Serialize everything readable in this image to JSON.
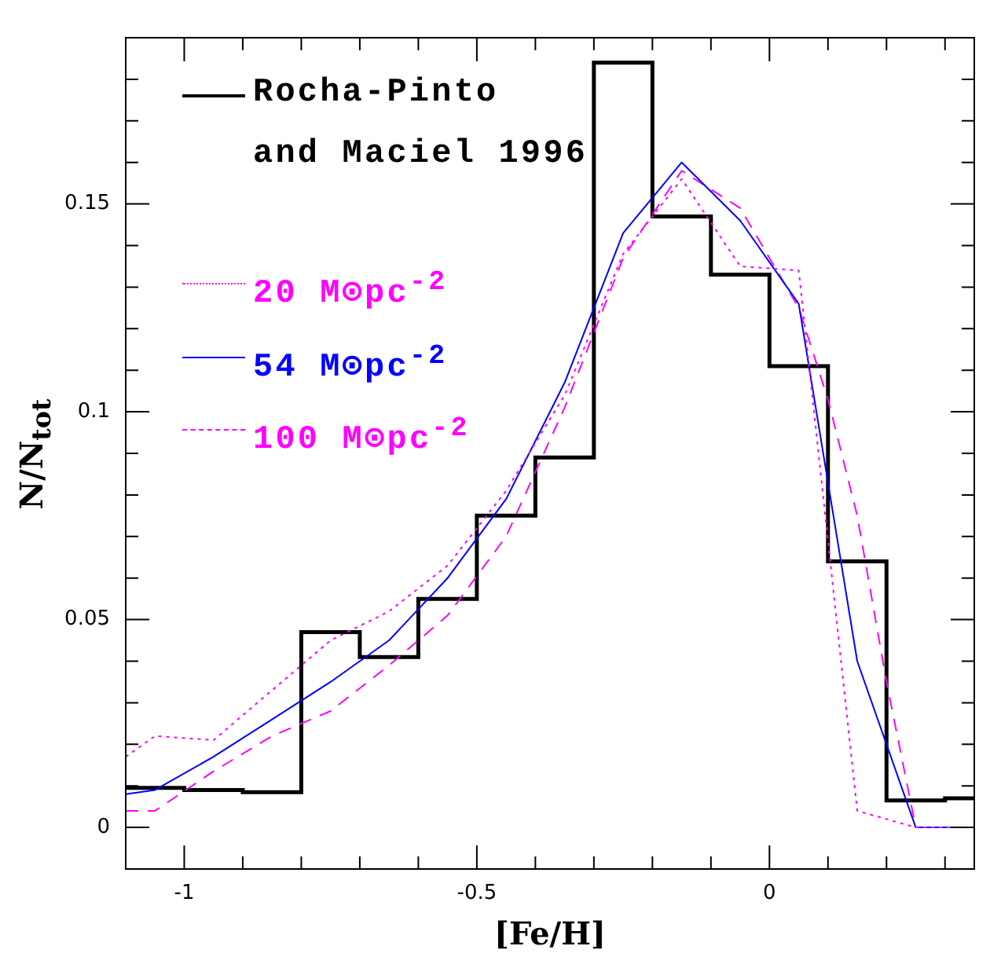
{
  "chart_data": {
    "type": "histogram",
    "xlabel": "[Fe/H]",
    "ylabel": "N/N$_{tot}$",
    "bins": [
      -1.1,
      -1.0,
      -0.9,
      -0.8,
      -0.7,
      -0.6,
      -0.5,
      -0.4,
      -0.3,
      -0.2,
      -0.1,
      0,
      0.1,
      0.2,
      0.3,
      0.35
    ],
    "series": [
      {
        "name": "Rocha-Pinto and Maciel 1996",
        "type": "histogram",
        "color": "#000000",
        "values": [
          0.0095,
          0.009,
          0.0085,
          0.047,
          0.041,
          0.055,
          0.075,
          0.089,
          0.184,
          0.147,
          0.133,
          0.111,
          0.064,
          0.0065,
          0.007
        ]
      },
      {
        "name": "20 M⊙pc$^{-2}$",
        "type": "line",
        "line_style": "dotted",
        "color": "#ff00ff",
        "x": [
          -1.1,
          -1.05,
          -0.95,
          -0.85,
          -0.75,
          -0.65,
          -0.55,
          -0.45,
          -0.35,
          -0.25,
          -0.15,
          -0.05,
          0.05,
          0.15,
          0.25,
          0.35
        ],
        "values": [
          0.017,
          0.022,
          0.021,
          0.033,
          0.045,
          0.052,
          0.063,
          0.081,
          0.104,
          0.138,
          0.156,
          0.135,
          0.134,
          0.004,
          0,
          0
        ]
      },
      {
        "name": "54 M⊙pc$^{-2}$",
        "type": "line",
        "line_style": "solid",
        "color": "#0000ff",
        "x": [
          -1.1,
          -1.05,
          -0.95,
          -0.85,
          -0.75,
          -0.65,
          -0.55,
          -0.45,
          -0.35,
          -0.25,
          -0.15,
          -0.05,
          0.05,
          0.15,
          0.25,
          0.35
        ],
        "values": [
          0.008,
          0.009,
          0.017,
          0.026,
          0.035,
          0.045,
          0.06,
          0.079,
          0.107,
          0.143,
          0.16,
          0.146,
          0.126,
          0.04,
          0,
          0
        ]
      },
      {
        "name": "100 M⊙pc$^{-2}$",
        "type": "line",
        "line_style": "dashed",
        "color": "#ff00ff",
        "x": [
          -1.1,
          -1.05,
          -0.95,
          -0.85,
          -0.75,
          -0.65,
          -0.55,
          -0.45,
          -0.35,
          -0.25,
          -0.15,
          -0.05,
          0.05,
          0.1,
          0.15,
          0.2,
          0.25,
          0.35
        ],
        "values": [
          0.004,
          0.004,
          0.0135,
          0.022,
          0.028,
          0.039,
          0.051,
          0.07,
          0.101,
          0.137,
          0.158,
          0.149,
          0.125,
          0.103,
          0.075,
          0.035,
          0,
          0
        ]
      }
    ],
    "xlim": [
      -1.1,
      0.35
    ],
    "xticks": [
      {
        "value": -1.1,
        "label": null
      },
      -1,
      {
        "value": -0.9,
        "label": null
      },
      {
        "value": -0.8,
        "label": null
      },
      {
        "value": -0.7,
        "label": null
      },
      {
        "value": -0.6,
        "label": null
      },
      -0.5,
      {
        "value": -0.4,
        "label": null
      },
      {
        "value": -0.3,
        "label": null
      },
      {
        "value": -0.2,
        "label": null
      },
      {
        "value": -0.1,
        "label": null
      },
      0,
      {
        "value": 0.1,
        "label": null
      },
      {
        "value": 0.2,
        "label": null
      },
      {
        "value": 0.3,
        "label": null
      }
    ],
    "ylim": [
      -0.01,
      0.19
    ],
    "yticks": [
      {
        "value": -0.01,
        "label": null
      },
      0,
      {
        "value": 0.01,
        "label": null
      },
      {
        "value": 0.02,
        "label": null
      },
      {
        "value": 0.03,
        "label": null
      },
      {
        "value": 0.04,
        "label": null
      },
      0.05,
      {
        "value": 0.06,
        "label": null
      },
      {
        "value": 0.07,
        "label": null
      },
      {
        "value": 0.08,
        "label": null
      },
      {
        "value": 0.09,
        "label": null
      },
      0.1,
      {
        "value": 0.11,
        "label": null
      },
      {
        "value": 0.12,
        "label": null
      },
      {
        "value": 0.13,
        "label": null
      },
      {
        "value": 0.14,
        "label": null
      },
      0.15,
      {
        "value": 0.16,
        "label": null
      },
      {
        "value": 0.17,
        "label": null
      },
      {
        "value": 0.18,
        "label": null
      }
    ],
    "grid": false,
    "legend": "top left"
  }
}
